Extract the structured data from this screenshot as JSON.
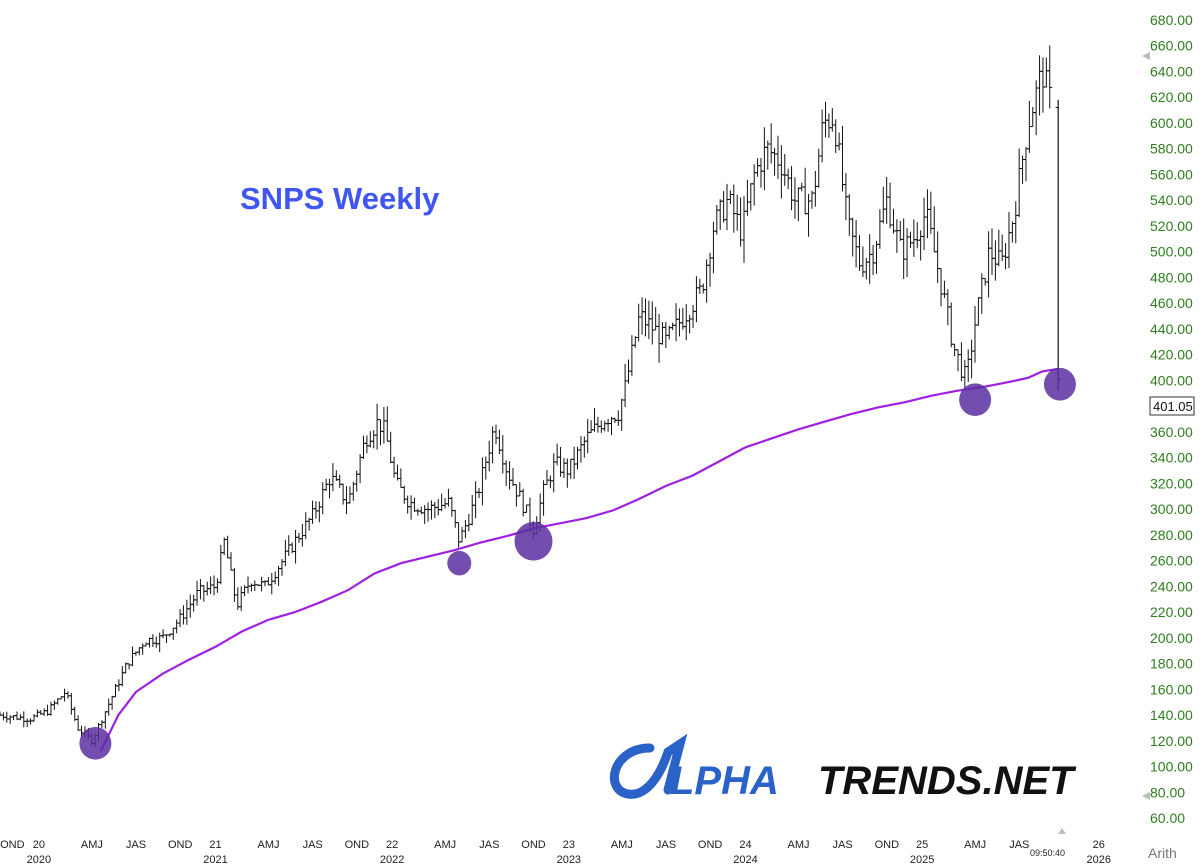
{
  "chart_data": {
    "type": "bar",
    "style": "ohlc-weekly",
    "title": "SNPS Weekly",
    "y_axis": {
      "position": "right",
      "scale": "arithmetic",
      "range": [
        60,
        680
      ],
      "ticks": [
        "680.00",
        "660.00",
        "640.00",
        "620.00",
        "600.00",
        "580.00",
        "560.00",
        "540.00",
        "520.00",
        "500.00",
        "480.00",
        "460.00",
        "440.00",
        "420.00",
        "400.00",
        "380.00",
        "360.00",
        "340.00",
        "320.00",
        "300.00",
        "280.00",
        "260.00",
        "240.00",
        "220.00",
        "200.00",
        "180.00",
        "160.00",
        "140.00",
        "120.00",
        "100.00",
        "80.00",
        "60.00"
      ],
      "scale_label": "Arith"
    },
    "last_price_label": "401.05",
    "x_axis": {
      "range": [
        2019.78,
        2026.12
      ],
      "ticks": [
        {
          "label": "OND",
          "year_label": "",
          "t": 2019.85
        },
        {
          "label": "20",
          "year_label": "2020",
          "t": 2020.0
        },
        {
          "label": "AMJ",
          "year_label": "",
          "t": 2020.3
        },
        {
          "label": "JAS",
          "year_label": "",
          "t": 2020.55
        },
        {
          "label": "OND",
          "year_label": "",
          "t": 2020.8
        },
        {
          "label": "21",
          "year_label": "2021",
          "t": 2021.0
        },
        {
          "label": "AMJ",
          "year_label": "",
          "t": 2021.3
        },
        {
          "label": "JAS",
          "year_label": "",
          "t": 2021.55
        },
        {
          "label": "OND",
          "year_label": "",
          "t": 2021.8
        },
        {
          "label": "22",
          "year_label": "2022",
          "t": 2022.0
        },
        {
          "label": "AMJ",
          "year_label": "",
          "t": 2022.3
        },
        {
          "label": "JAS",
          "year_label": "",
          "t": 2022.55
        },
        {
          "label": "OND",
          "year_label": "",
          "t": 2022.8
        },
        {
          "label": "23",
          "year_label": "2023",
          "t": 2023.0
        },
        {
          "label": "AMJ",
          "year_label": "",
          "t": 2023.3
        },
        {
          "label": "JAS",
          "year_label": "",
          "t": 2023.55
        },
        {
          "label": "OND",
          "year_label": "",
          "t": 2023.8
        },
        {
          "label": "24",
          "year_label": "2024",
          "t": 2024.0
        },
        {
          "label": "AMJ",
          "year_label": "",
          "t": 2024.3
        },
        {
          "label": "JAS",
          "year_label": "",
          "t": 2024.55
        },
        {
          "label": "OND",
          "year_label": "",
          "t": 2024.8
        },
        {
          "label": "25",
          "year_label": "2025",
          "t": 2025.0
        },
        {
          "label": "AMJ",
          "year_label": "",
          "t": 2025.3
        },
        {
          "label": "JAS",
          "year_label": "",
          "t": 2025.55
        },
        {
          "label": "26",
          "year_label": "2026",
          "t": 2026.0
        }
      ],
      "clock_label": "09:50:40"
    },
    "price_path": [
      [
        2019.78,
        140
      ],
      [
        2019.95,
        137
      ],
      [
        2020.05,
        143
      ],
      [
        2020.15,
        158
      ],
      [
        2020.22,
        130
      ],
      [
        2020.3,
        120
      ],
      [
        2020.4,
        150
      ],
      [
        2020.5,
        180
      ],
      [
        2020.6,
        198
      ],
      [
        2020.7,
        200
      ],
      [
        2020.8,
        215
      ],
      [
        2020.9,
        235
      ],
      [
        2021.0,
        240
      ],
      [
        2021.05,
        275
      ],
      [
        2021.12,
        225
      ],
      [
        2021.2,
        245
      ],
      [
        2021.28,
        240
      ],
      [
        2021.38,
        260
      ],
      [
        2021.45,
        275
      ],
      [
        2021.55,
        295
      ],
      [
        2021.65,
        325
      ],
      [
        2021.75,
        305
      ],
      [
        2021.85,
        355
      ],
      [
        2021.92,
        368
      ],
      [
        2021.96,
        360
      ],
      [
        2022.02,
        320
      ],
      [
        2022.1,
        305
      ],
      [
        2022.2,
        300
      ],
      [
        2022.32,
        305
      ],
      [
        2022.38,
        275
      ],
      [
        2022.48,
        310
      ],
      [
        2022.58,
        365
      ],
      [
        2022.65,
        330
      ],
      [
        2022.72,
        310
      ],
      [
        2022.8,
        285
      ],
      [
        2022.86,
        315
      ],
      [
        2022.92,
        335
      ],
      [
        2023.0,
        330
      ],
      [
        2023.1,
        355
      ],
      [
        2023.2,
        370
      ],
      [
        2023.28,
        375
      ],
      [
        2023.32,
        395
      ],
      [
        2023.4,
        450
      ],
      [
        2023.48,
        440
      ],
      [
        2023.55,
        430
      ],
      [
        2023.65,
        450
      ],
      [
        2023.75,
        470
      ],
      [
        2023.82,
        520
      ],
      [
        2023.9,
        540
      ],
      [
        2023.98,
        515
      ],
      [
        2024.05,
        560
      ],
      [
        2024.12,
        580
      ],
      [
        2024.2,
        570
      ],
      [
        2024.28,
        540
      ],
      [
        2024.38,
        540
      ],
      [
        2024.44,
        600
      ],
      [
        2024.5,
        605
      ],
      [
        2024.58,
        520
      ],
      [
        2024.65,
        490
      ],
      [
        2024.72,
        500
      ],
      [
        2024.8,
        540
      ],
      [
        2024.88,
        500
      ],
      [
        2024.95,
        510
      ],
      [
        2025.02,
        530
      ],
      [
        2025.1,
        480
      ],
      [
        2025.18,
        425
      ],
      [
        2025.25,
        400
      ],
      [
        2025.3,
        445
      ],
      [
        2025.38,
        500
      ],
      [
        2025.45,
        490
      ],
      [
        2025.52,
        530
      ],
      [
        2025.6,
        600
      ],
      [
        2025.68,
        640
      ],
      [
        2025.74,
        610
      ],
      [
        2025.77,
        395
      ]
    ],
    "moving_average": [
      [
        2020.35,
        112
      ],
      [
        2020.45,
        140
      ],
      [
        2020.55,
        158
      ],
      [
        2020.7,
        172
      ],
      [
        2020.85,
        183
      ],
      [
        2021.0,
        193
      ],
      [
        2021.15,
        205
      ],
      [
        2021.3,
        214
      ],
      [
        2021.45,
        220
      ],
      [
        2021.6,
        228
      ],
      [
        2021.75,
        237
      ],
      [
        2021.9,
        250
      ],
      [
        2022.05,
        258
      ],
      [
        2022.2,
        263
      ],
      [
        2022.35,
        268
      ],
      [
        2022.5,
        274
      ],
      [
        2022.65,
        279
      ],
      [
        2022.8,
        285
      ],
      [
        2022.95,
        289
      ],
      [
        2023.1,
        293
      ],
      [
        2023.25,
        299
      ],
      [
        2023.4,
        308
      ],
      [
        2023.55,
        318
      ],
      [
        2023.7,
        326
      ],
      [
        2023.85,
        337
      ],
      [
        2024.0,
        348
      ],
      [
        2024.15,
        355
      ],
      [
        2024.3,
        362
      ],
      [
        2024.45,
        368
      ],
      [
        2024.6,
        374
      ],
      [
        2024.75,
        379
      ],
      [
        2024.9,
        383
      ],
      [
        2025.05,
        388
      ],
      [
        2025.2,
        392
      ],
      [
        2025.35,
        395
      ],
      [
        2025.5,
        399
      ],
      [
        2025.6,
        402
      ],
      [
        2025.68,
        407
      ],
      [
        2025.77,
        409
      ]
    ],
    "touch_points": [
      {
        "t": 2020.32,
        "v": 118,
        "size": "medium"
      },
      {
        "t": 2022.38,
        "v": 258,
        "size": "small"
      },
      {
        "t": 2022.8,
        "v": 275,
        "size": "large"
      },
      {
        "t": 2025.3,
        "v": 385,
        "size": "medium"
      },
      {
        "t": 2025.78,
        "v": 397,
        "size": "medium"
      }
    ],
    "colors": {
      "price_bars": "#111111",
      "moving_average": "#a020e0",
      "touch_points": "#5b2fa0",
      "axis_labels": "#2e7d1f",
      "title": "#3f57f0"
    }
  },
  "watermark": {
    "part1": "LPHA",
    "part2": "TRENDS.NET",
    "brand_blue": "#2a62c8"
  }
}
